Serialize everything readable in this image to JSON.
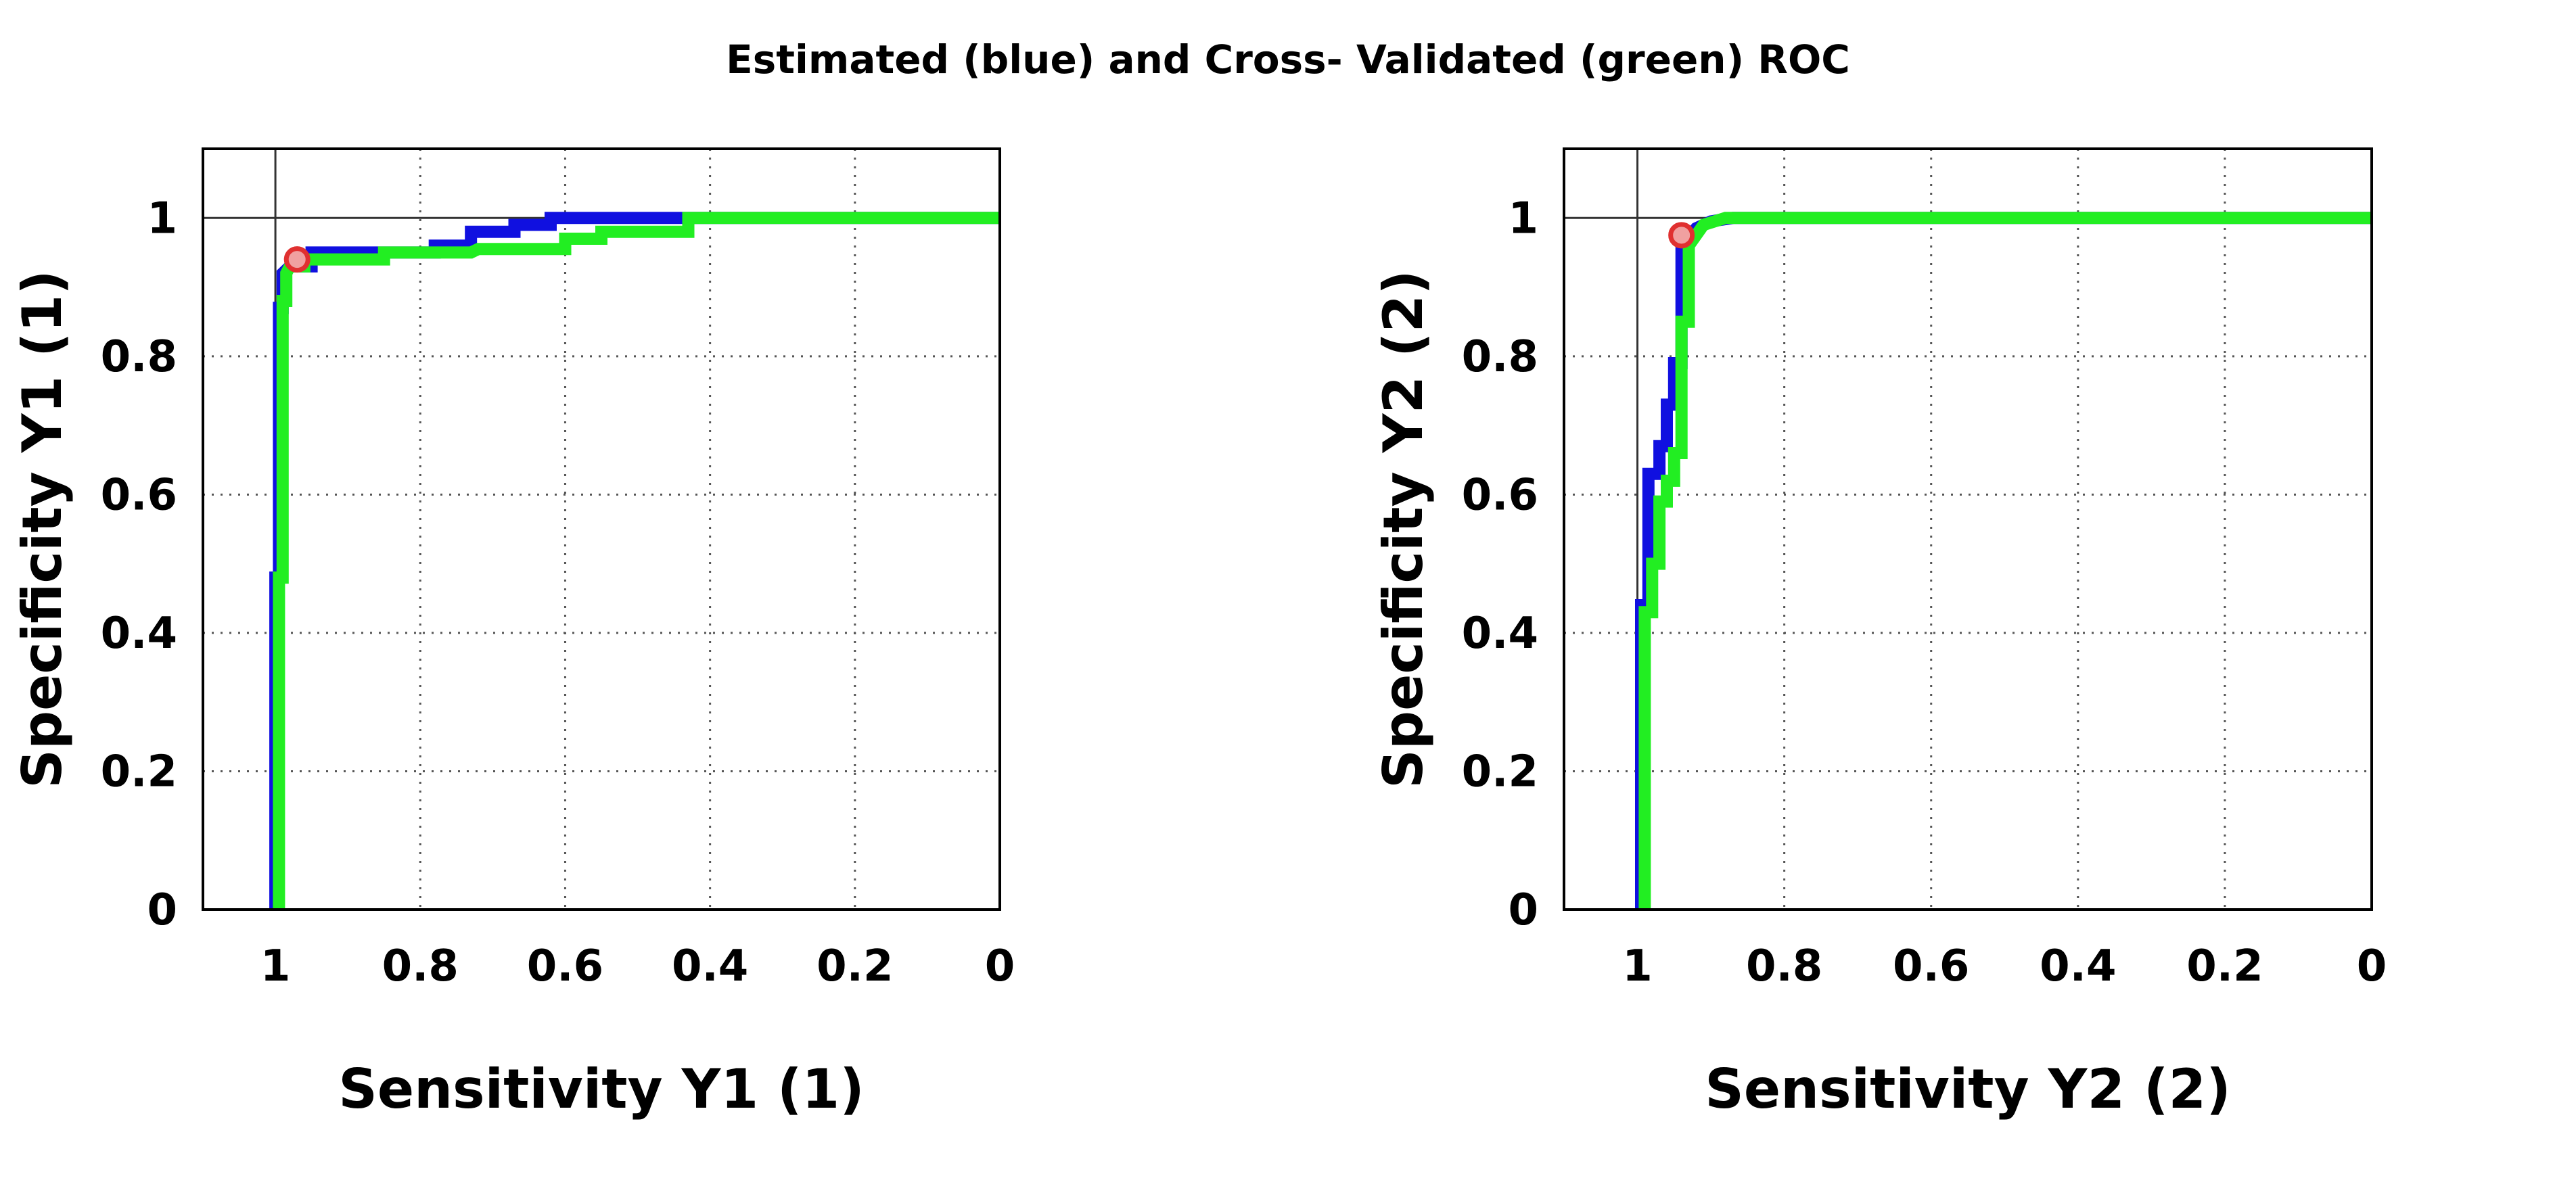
{
  "title": "Estimated (blue) and Cross- Validated (green) ROC",
  "colors": {
    "estimated": "#1010e0",
    "cross_validated": "#22ee22",
    "marker": "#e03030",
    "grid": "#555555",
    "frame": "#000000"
  },
  "chart_data": [
    {
      "type": "line",
      "xlabel": "Sensitivity Y1 (1)",
      "ylabel": "Specificity Y1 (1)",
      "xlim": [
        1.1,
        0
      ],
      "ylim": [
        0,
        1.1
      ],
      "xticks": [
        1,
        0.8,
        0.6,
        0.4,
        0.2,
        0
      ],
      "xtick_labels": [
        "1",
        "0.8",
        "0.6",
        "0.4",
        "0.2",
        "0"
      ],
      "yticks": [
        0,
        0.2,
        0.4,
        0.6,
        0.8,
        1
      ],
      "ytick_labels": [
        "0",
        "0.2",
        "0.4",
        "0.6",
        "0.8",
        "1"
      ],
      "reference_lines": {
        "x": 1,
        "y": 1
      },
      "series": [
        {
          "name": "Estimated",
          "color": "#1010e0",
          "x": [
            1.0,
            1.0,
            0.995,
            0.995,
            0.99,
            0.99,
            0.98,
            0.95,
            0.95,
            0.78,
            0.78,
            0.73,
            0.73,
            0.67,
            0.67,
            0.62,
            0.62,
            0.43,
            0.4,
            0.0
          ],
          "y": [
            0.0,
            0.48,
            0.48,
            0.87,
            0.87,
            0.92,
            0.93,
            0.93,
            0.95,
            0.95,
            0.96,
            0.96,
            0.98,
            0.98,
            0.99,
            0.99,
            1.0,
            1.0,
            1.0,
            1.0
          ]
        },
        {
          "name": "Cross-Validated",
          "color": "#22ee22",
          "x": [
            0.995,
            0.995,
            0.99,
            0.99,
            0.985,
            0.985,
            0.98,
            0.96,
            0.96,
            0.85,
            0.85,
            0.73,
            0.72,
            0.6,
            0.6,
            0.55,
            0.55,
            0.43,
            0.43,
            0.0
          ],
          "y": [
            0.0,
            0.48,
            0.48,
            0.88,
            0.88,
            0.92,
            0.93,
            0.93,
            0.94,
            0.94,
            0.95,
            0.95,
            0.955,
            0.955,
            0.97,
            0.97,
            0.98,
            0.98,
            1.0,
            1.0
          ]
        }
      ],
      "optimal_point": {
        "x": 0.97,
        "y": 0.94
      }
    },
    {
      "type": "line",
      "xlabel": "Sensitivity Y2 (2)",
      "ylabel": "Specificity Y2 (2)",
      "xlim": [
        1.1,
        0
      ],
      "ylim": [
        0,
        1.1
      ],
      "xticks": [
        1,
        0.8,
        0.6,
        0.4,
        0.2,
        0
      ],
      "xtick_labels": [
        "1",
        "0.8",
        "0.6",
        "0.4",
        "0.2",
        "0"
      ],
      "yticks": [
        0,
        0.2,
        0.4,
        0.6,
        0.8,
        1
      ],
      "ytick_labels": [
        "0",
        "0.2",
        "0.4",
        "0.6",
        "0.8",
        "1"
      ],
      "reference_lines": {
        "x": 1,
        "y": 1
      },
      "series": [
        {
          "name": "Estimated",
          "color": "#1010e0",
          "x": [
            0.995,
            0.995,
            0.985,
            0.985,
            0.97,
            0.97,
            0.96,
            0.96,
            0.95,
            0.95,
            0.94,
            0.94,
            0.92,
            0.9,
            0.87,
            0.0
          ],
          "y": [
            0.0,
            0.44,
            0.44,
            0.63,
            0.63,
            0.67,
            0.67,
            0.73,
            0.73,
            0.79,
            0.79,
            0.96,
            0.985,
            0.995,
            1.0,
            1.0
          ]
        },
        {
          "name": "Cross-Validated",
          "color": "#22ee22",
          "x": [
            0.99,
            0.99,
            0.98,
            0.98,
            0.97,
            0.97,
            0.96,
            0.96,
            0.95,
            0.95,
            0.94,
            0.94,
            0.93,
            0.93,
            0.91,
            0.88,
            0.0
          ],
          "y": [
            0.0,
            0.43,
            0.43,
            0.5,
            0.5,
            0.59,
            0.59,
            0.62,
            0.62,
            0.66,
            0.66,
            0.85,
            0.85,
            0.96,
            0.99,
            1.0,
            1.0
          ]
        }
      ],
      "optimal_point": {
        "x": 0.94,
        "y": 0.975
      }
    }
  ]
}
